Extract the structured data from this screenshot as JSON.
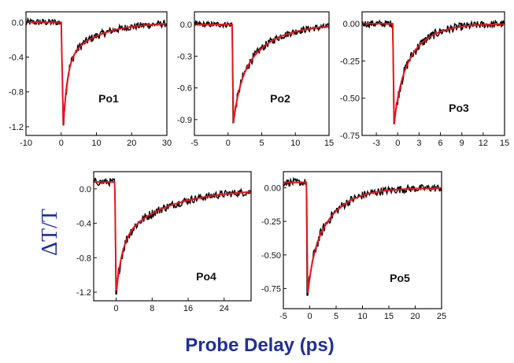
{
  "figure": {
    "ylabel": "ΔT/T",
    "xlabel": "Probe Delay (ps)",
    "colors": {
      "data": "#000000",
      "fit": "#e8141b",
      "axis_label": "#1f2f9a"
    }
  },
  "chart_data": [
    {
      "type": "line",
      "label": "Po1",
      "xlim": [
        -10,
        30
      ],
      "ylim": [
        -1.3,
        0.12
      ],
      "xticks": [
        -10,
        0,
        10,
        20,
        30
      ],
      "yticks": [
        0.0,
        -0.4,
        -0.8,
        -1.2
      ],
      "ytick_labels": [
        "0.0",
        "-0.4",
        "-0.8",
        "-1.2"
      ],
      "baseline": 0.0,
      "onset": 0.0,
      "dip_x": 0.6,
      "dip": -1.18,
      "fast_amp": 0.62,
      "fast_tau": 1.2,
      "slow_tau": 9.0,
      "noise": 0.05,
      "series": [
        {
          "name": "data",
          "style": "noisy"
        },
        {
          "name": "fit",
          "style": "smooth"
        }
      ]
    },
    {
      "type": "line",
      "label": "Po2",
      "xlim": [
        -5,
        15
      ],
      "ylim": [
        -1.05,
        0.12
      ],
      "xticks": [
        -5,
        0,
        5,
        10,
        15
      ],
      "yticks": [
        0.0,
        -0.3,
        -0.6,
        -0.9
      ],
      "ytick_labels": [
        "0.0",
        "-0.3",
        "-0.6",
        "-0.9"
      ],
      "baseline": 0.0,
      "onset": 0.6,
      "dip_x": 0.8,
      "dip": -0.93,
      "fast_amp": 0.35,
      "fast_tau": 0.9,
      "slow_tau": 4.2,
      "noise": 0.035,
      "series": [
        {
          "name": "data",
          "style": "noisy"
        },
        {
          "name": "fit",
          "style": "smooth"
        }
      ]
    },
    {
      "type": "line",
      "label": "Po3",
      "xlim": [
        -5,
        15
      ],
      "ylim": [
        -0.75,
        0.08
      ],
      "xticks": [
        -3,
        0,
        3,
        6,
        9,
        12,
        15
      ],
      "yticks": [
        0.0,
        -0.25,
        -0.5,
        -0.75
      ],
      "ytick_labels": [
        "0.00",
        "-0.25",
        "-0.50",
        "-0.75"
      ],
      "baseline": 0.0,
      "onset": -0.7,
      "dip_x": -0.5,
      "dip": -0.67,
      "fast_amp": 0.3,
      "fast_tau": 0.8,
      "slow_tau": 3.0,
      "noise": 0.03,
      "series": [
        {
          "name": "data",
          "style": "noisy"
        },
        {
          "name": "fit",
          "style": "smooth"
        }
      ]
    },
    {
      "type": "line",
      "label": "Po4",
      "xlim": [
        -5,
        30
      ],
      "ylim": [
        -1.3,
        0.2
      ],
      "xticks": [
        0,
        8,
        16,
        24
      ],
      "yticks": [
        0.0,
        -0.4,
        -0.8,
        -1.2
      ],
      "ytick_labels": [
        "0.0",
        "-0.4",
        "-0.8",
        "-1.2"
      ],
      "baseline": 0.08,
      "onset": -0.3,
      "dip_x": 0.0,
      "dip": -1.22,
      "fast_amp": 0.5,
      "fast_tau": 1.3,
      "slow_tau": 10.5,
      "noise": 0.055,
      "series": [
        {
          "name": "data",
          "style": "noisy"
        },
        {
          "name": "fit",
          "style": "smooth"
        }
      ]
    },
    {
      "type": "line",
      "label": "Po5",
      "xlim": [
        -5,
        25
      ],
      "ylim": [
        -0.9,
        0.12
      ],
      "xticks": [
        -5,
        0,
        5,
        10,
        15,
        20,
        25
      ],
      "yticks": [
        0.0,
        -0.25,
        -0.5,
        -0.75
      ],
      "ytick_labels": [
        "0.00",
        "-0.25",
        "-0.50",
        "-0.75"
      ],
      "baseline": 0.04,
      "onset": -0.6,
      "dip_x": -0.4,
      "dip": -0.8,
      "fast_amp": 0.28,
      "fast_tau": 0.9,
      "slow_tau": 4.5,
      "noise": 0.035,
      "series": [
        {
          "name": "data",
          "style": "noisy"
        },
        {
          "name": "fit",
          "style": "smooth"
        }
      ]
    }
  ]
}
